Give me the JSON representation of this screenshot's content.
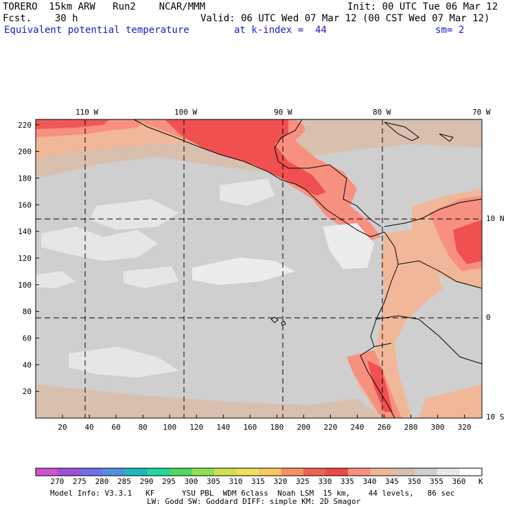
{
  "header": {
    "model": "TORERO  15km ARW   Run2    NCAR/MMM",
    "init": "Init: 00 UTC Tue 06 Mar 12",
    "fcst": "Fcst.    30 h",
    "valid": "Valid: 06 UTC Wed 07 Mar 12 (00 CST Wed 07 Mar 12)",
    "field": "Equivalent potential temperature",
    "kindex": "at k-index =  44",
    "sm": "sm= 2"
  },
  "map": {
    "lon_labels": [
      "110 W",
      "100 W",
      "90 W",
      "80 W",
      "70 W"
    ],
    "lat_labels": [
      "10 N",
      "0",
      "10 S"
    ],
    "x_ticks": [
      "20",
      "40",
      "60",
      "80",
      "100",
      "120",
      "140",
      "160",
      "180",
      "200",
      "220",
      "240",
      "260",
      "280",
      "300",
      "320"
    ],
    "y_ticks": [
      "220",
      "200",
      "180",
      "160",
      "140",
      "120",
      "100",
      "80",
      "60",
      "40",
      "20"
    ],
    "x_tick_values": [
      20,
      40,
      60,
      80,
      100,
      120,
      140,
      160,
      180,
      200,
      220,
      240,
      260,
      280,
      300,
      320
    ],
    "y_tick_values": [
      220,
      200,
      180,
      160,
      140,
      120,
      100,
      80,
      60,
      40,
      20
    ],
    "grid_x_range": [
      0,
      333
    ],
    "grid_y_range": [
      0,
      224
    ]
  },
  "colorbar": {
    "labels": [
      "270",
      "275",
      "280",
      "285",
      "290",
      "295",
      "300",
      "305",
      "310",
      "315",
      "320",
      "325",
      "330",
      "335",
      "340",
      "345",
      "350",
      "355",
      "360"
    ],
    "unit": "K",
    "colors": [
      "#d050d0",
      "#a050d8",
      "#7070e8",
      "#5090e0",
      "#20b8c0",
      "#20d8a0",
      "#50d860",
      "#90e050",
      "#d0e050",
      "#f0e060",
      "#f8c860",
      "#f89060",
      "#f06050",
      "#f04848",
      "#f89080",
      "#f0b898",
      "#d8c0b0",
      "#cfcfcf",
      "#e8e8e8",
      "#ffffff"
    ]
  },
  "footer": {
    "line1": "Model Info: V3.3.1   KF      YSU PBL  WDM 6class  Noah LSM  15 km,    44 levels,   86 sec",
    "line2": "LW: Godd SW: Goddard DIFF: simple KM: 2D Smagor"
  }
}
